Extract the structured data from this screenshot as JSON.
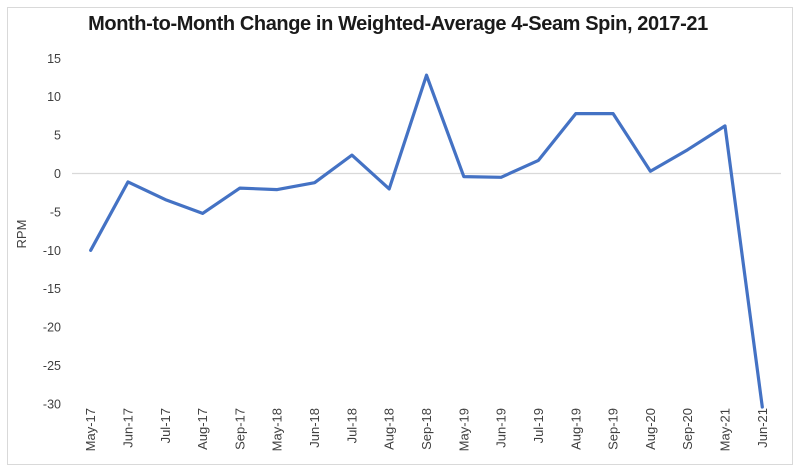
{
  "chart_data": {
    "type": "line",
    "title": "Month-to-Month Change in Weighted-Average 4-Seam Spin, 2017-21",
    "xlabel": "",
    "ylabel": "RPM",
    "categories": [
      "May-17",
      "Jun-17",
      "Jul-17",
      "Aug-17",
      "Sep-17",
      "May-18",
      "Jun-18",
      "Jul-18",
      "Aug-18",
      "Sep-18",
      "May-19",
      "Jun-19",
      "Jul-19",
      "Aug-19",
      "Sep-19",
      "Aug-20",
      "Sep-20",
      "May-21",
      "Jun-21"
    ],
    "values": [
      -10,
      -1.1,
      -3.4,
      -5.2,
      -1.9,
      -2.1,
      -1.2,
      2.4,
      -2,
      12.8,
      -0.4,
      -0.5,
      1.7,
      7.8,
      7.8,
      0.3,
      3.1,
      6.2,
      -30.4
    ],
    "y_ticks": [
      15,
      10,
      5,
      0,
      -5,
      -10,
      -15,
      -20,
      -25,
      -30
    ],
    "ylim": [
      -30,
      15
    ],
    "grid": "zero-line-only",
    "legend": "none",
    "x_label_rotation_deg": -90,
    "colors": {
      "line": "#4472C4",
      "gridline": "#d9d9d9",
      "frame_border": "#d9d9d9",
      "axis_text": "#404040",
      "title_text": "#1a1a1a",
      "background": "#ffffff"
    }
  }
}
